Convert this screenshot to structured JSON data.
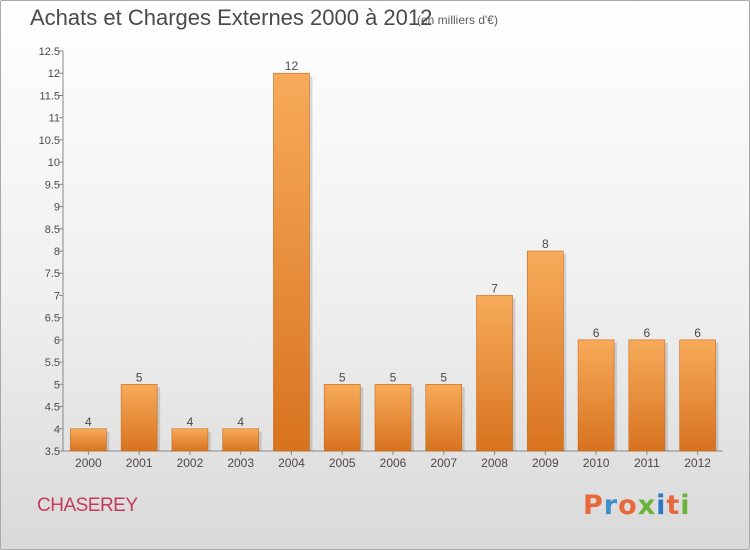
{
  "header": {
    "title": "Achats et Charges Externes 2000 à 2012",
    "subtitle": "(en milliers d'€)"
  },
  "commune_name": "CHASEREY",
  "logo": {
    "text": "Proxiti",
    "colors": [
      "#e8683a",
      "#3d8ec9",
      "#e8683a",
      "#6bb23a",
      "#2d78c4",
      "#e8683a",
      "#6bb23a"
    ]
  },
  "colors": {
    "bar_light": "#f7ab5a",
    "bar_dark": "#d8731f",
    "text": "#4a4a4a",
    "commune": "#c43b5b"
  },
  "chart_data": {
    "type": "bar",
    "title": "Achats et Charges Externes 2000 à 2012",
    "subtitle": "(en milliers d'€)",
    "categories": [
      "2000",
      "2001",
      "2002",
      "2003",
      "2004",
      "2005",
      "2006",
      "2007",
      "2008",
      "2009",
      "2010",
      "2011",
      "2012"
    ],
    "values": [
      4,
      5,
      4,
      4,
      12,
      5,
      5,
      5,
      7,
      8,
      6,
      6,
      6
    ],
    "data_labels": [
      "4",
      "5",
      "4",
      "4",
      "12",
      "5",
      "5",
      "5",
      "7",
      "8",
      "6",
      "6",
      "6"
    ],
    "ylim": [
      3.5,
      12.5
    ],
    "yticks": [
      3.5,
      4,
      4.5,
      5,
      5.5,
      6,
      6.5,
      7,
      7.5,
      8,
      8.5,
      9,
      9.5,
      10,
      10.5,
      11,
      11.5,
      12,
      12.5
    ],
    "ytick_labels": [
      "3.5",
      "4",
      "4.5",
      "5",
      "5.5",
      "6",
      "6.5",
      "7",
      "7.5",
      "8",
      "8.5",
      "9",
      "9.5",
      "10",
      "10.5",
      "11",
      "11.5",
      "12",
      "12.5"
    ],
    "grid": false,
    "legend": "none"
  }
}
